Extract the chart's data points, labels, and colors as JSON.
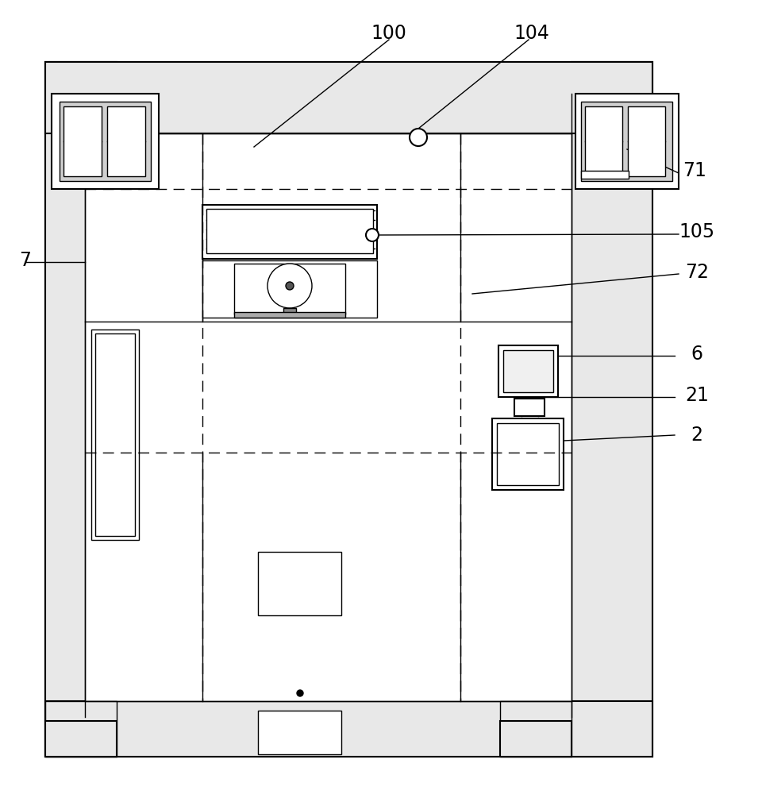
{
  "bg_color": "#ffffff",
  "lc": "#000000",
  "wall_fill": "#e8e8e8",
  "white": "#ffffff",
  "fig_w": 9.6,
  "fig_h": 10.0,
  "dpi": 100
}
